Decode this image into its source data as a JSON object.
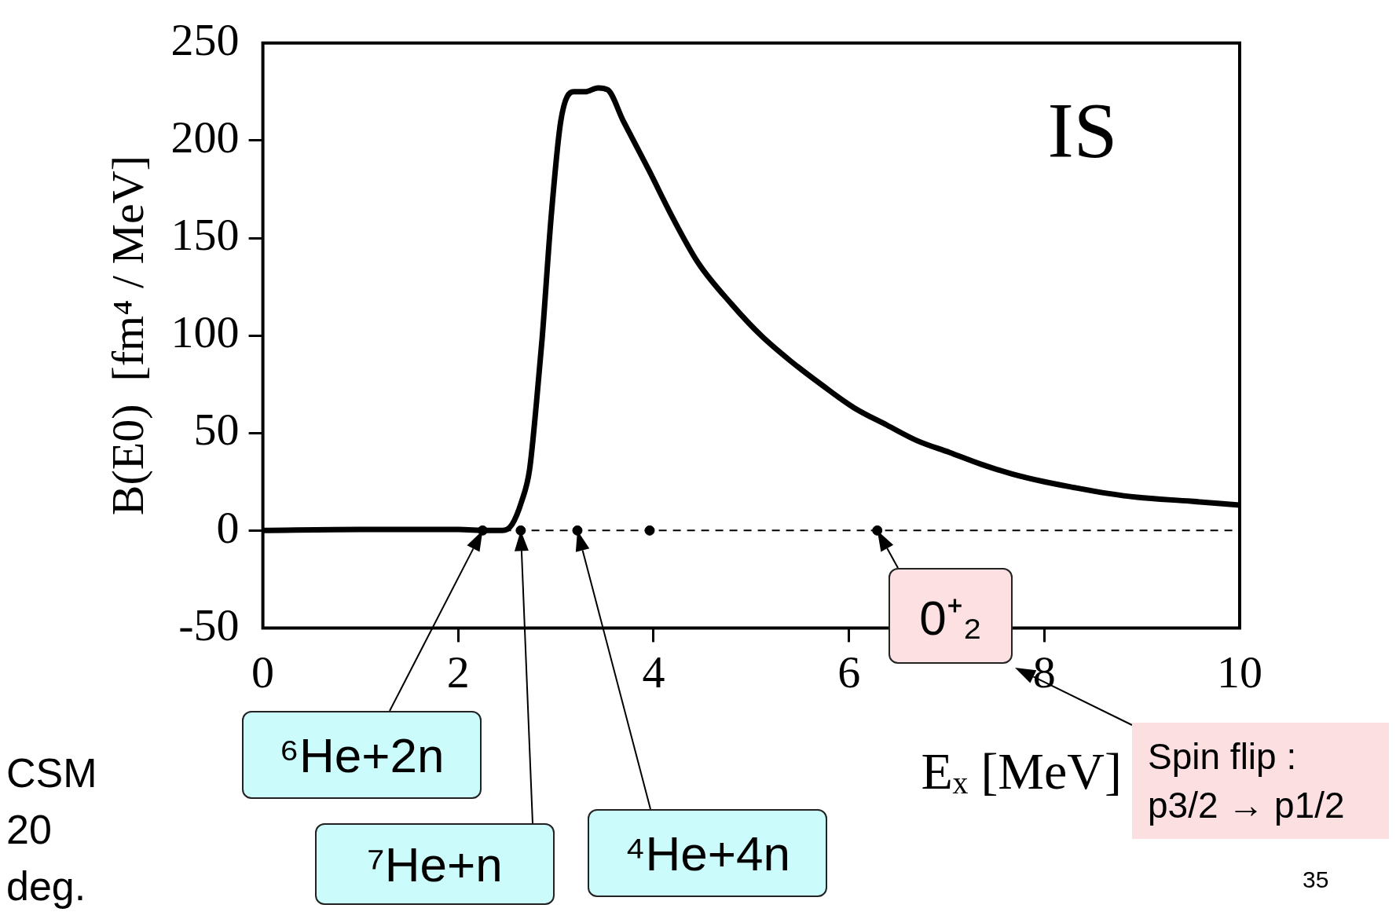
{
  "chart_data": {
    "type": "line",
    "xlabel": "Eₓ [MeV]",
    "ylabel": "B(E0)  [fm⁴ / MeV]",
    "x": [
      0,
      1,
      2,
      2.3,
      2.45,
      2.55,
      2.65,
      2.73,
      2.8,
      2.86,
      2.95,
      3.05,
      3.18,
      3.3,
      3.43,
      3.53,
      3.69,
      3.95,
      4.2,
      4.46,
      4.8,
      5.1,
      5.4,
      5.74,
      6.05,
      6.39,
      6.7,
      7.03,
      7.35,
      7.67,
      8.0,
      8.31,
      8.65,
      8.95,
      9.5,
      10
    ],
    "series": [
      {
        "color": "#000000",
        "values": [
          0,
          0.5,
          0.5,
          0,
          0,
          3,
          15,
          31,
          65,
          99,
          160,
          210,
          225,
          225,
          227,
          226,
          210,
          185,
          160,
          137,
          116,
          100,
          87,
          74,
          63,
          54,
          46,
          40,
          34,
          29,
          25,
          22,
          19,
          17,
          15,
          13
        ]
      },
      {
        "type": "scatter",
        "color": "#000000",
        "marker": "circle",
        "x": [
          2.25,
          2.64,
          3.22,
          3.96,
          6.29
        ],
        "values": [
          0,
          0,
          0,
          0,
          0
        ]
      }
    ],
    "xlim": [
      0,
      10
    ],
    "ylim": [
      -50,
      250
    ],
    "xticks": [
      0,
      2,
      4,
      6,
      8,
      10
    ],
    "yticks": [
      -50,
      0,
      50,
      100,
      150,
      200,
      250
    ],
    "grid": false,
    "legend": false,
    "line_style": "solid",
    "ref_lines": [
      {
        "axis": "y",
        "value": 0,
        "line_style": "dashed",
        "color": "#000000"
      }
    ],
    "annotations": [
      "IS",
      "CSM 20 deg.",
      "⁶He+2n",
      "⁷He+n",
      "⁴He+4n",
      {
        "text": "0⁺₂",
        "x": 6.29,
        "y": 0
      },
      "Spin flip : p3/2 → p1/2",
      "35"
    ]
  }
}
